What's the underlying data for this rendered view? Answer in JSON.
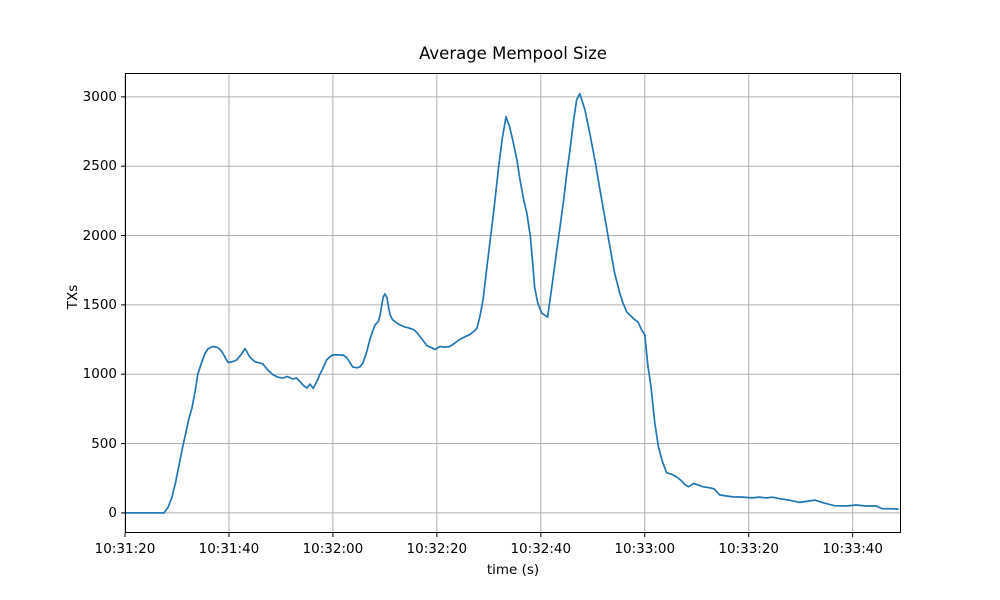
{
  "chart_data": {
    "type": "line",
    "title": "Average Mempool Size",
    "xlabel": "time (s)",
    "ylabel": "TXs",
    "grid": true,
    "legend": "none",
    "line_color": "#1f77b4",
    "grid_color": "#b0b0b0",
    "spine_color": "#000000",
    "x_unit": "seconds since 10:31:20",
    "x_tick_seconds": [
      0,
      20,
      40,
      60,
      80,
      100,
      120,
      140
    ],
    "x_tick_labels": [
      "10:31:20",
      "10:31:40",
      "10:32:00",
      "10:32:20",
      "10:32:40",
      "10:33:00",
      "10:33:20",
      "10:33:40"
    ],
    "y_ticks": [
      0,
      500,
      1000,
      1500,
      2000,
      2500,
      3000
    ],
    "xlim_seconds": [
      0,
      149.3
    ],
    "ylim": [
      -145,
      3172
    ],
    "series": [
      {
        "points": [
          [
            0,
            0
          ],
          [
            2,
            0
          ],
          [
            4,
            0
          ],
          [
            6,
            0
          ],
          [
            7.5,
            0
          ],
          [
            8.3,
            40
          ],
          [
            9,
            110
          ],
          [
            9.7,
            215
          ],
          [
            10.4,
            346
          ],
          [
            11,
            460
          ],
          [
            11.6,
            560
          ],
          [
            12.3,
            680
          ],
          [
            12.9,
            757
          ],
          [
            13.5,
            880
          ],
          [
            14,
            1000
          ],
          [
            14.8,
            1090
          ],
          [
            15.4,
            1150
          ],
          [
            16,
            1185
          ],
          [
            16.9,
            1200
          ],
          [
            17.9,
            1192
          ],
          [
            18.7,
            1160
          ],
          [
            19.3,
            1120
          ],
          [
            19.8,
            1085
          ],
          [
            20.6,
            1089
          ],
          [
            21.5,
            1103
          ],
          [
            22.3,
            1140
          ],
          [
            23.1,
            1185
          ],
          [
            24,
            1125
          ],
          [
            25,
            1090
          ],
          [
            26.5,
            1075
          ],
          [
            27.5,
            1030
          ],
          [
            28.5,
            995
          ],
          [
            29.5,
            978
          ],
          [
            30.4,
            973
          ],
          [
            31.2,
            983
          ],
          [
            32.3,
            966
          ],
          [
            33,
            973
          ],
          [
            33.7,
            945
          ],
          [
            34.3,
            920
          ],
          [
            35,
            900
          ],
          [
            35.6,
            928
          ],
          [
            36.2,
            898
          ],
          [
            37,
            955
          ],
          [
            37.5,
            1000
          ],
          [
            38,
            1035
          ],
          [
            38.8,
            1103
          ],
          [
            39.4,
            1125
          ],
          [
            40,
            1139
          ],
          [
            41,
            1140
          ],
          [
            42,
            1138
          ],
          [
            42.7,
            1118
          ],
          [
            43.8,
            1053
          ],
          [
            44.6,
            1046
          ],
          [
            45.2,
            1053
          ],
          [
            45.8,
            1082
          ],
          [
            46.5,
            1161
          ],
          [
            47.1,
            1248
          ],
          [
            47.6,
            1305
          ],
          [
            48.1,
            1355
          ],
          [
            48.7,
            1377
          ],
          [
            49.1,
            1428
          ],
          [
            49.4,
            1500
          ],
          [
            49.7,
            1558
          ],
          [
            50,
            1579
          ],
          [
            50.4,
            1550
          ],
          [
            50.7,
            1486
          ],
          [
            51,
            1428
          ],
          [
            51.5,
            1392
          ],
          [
            52.3,
            1370
          ],
          [
            52.9,
            1355
          ],
          [
            53.8,
            1341
          ],
          [
            54.6,
            1334
          ],
          [
            55.6,
            1320
          ],
          [
            56.2,
            1298
          ],
          [
            57.2,
            1250
          ],
          [
            58.1,
            1205
          ],
          [
            58.7,
            1197
          ],
          [
            59.6,
            1178
          ],
          [
            60.6,
            1200
          ],
          [
            61.5,
            1195
          ],
          [
            62.5,
            1200
          ],
          [
            63.5,
            1225
          ],
          [
            64.4,
            1250
          ],
          [
            65.4,
            1270
          ],
          [
            66.3,
            1285
          ],
          [
            67,
            1305
          ],
          [
            67.7,
            1330
          ],
          [
            68.3,
            1420
          ],
          [
            68.9,
            1540
          ],
          [
            69.5,
            1730
          ],
          [
            70.1,
            1920
          ],
          [
            70.8,
            2130
          ],
          [
            71.4,
            2330
          ],
          [
            72,
            2530
          ],
          [
            72.6,
            2700
          ],
          [
            73.3,
            2856
          ],
          [
            74,
            2784
          ],
          [
            74.6,
            2690
          ],
          [
            75.4,
            2546
          ],
          [
            76,
            2402
          ],
          [
            76.7,
            2257
          ],
          [
            77.3,
            2163
          ],
          [
            78,
            1990
          ],
          [
            78.5,
            1774
          ],
          [
            78.8,
            1630
          ],
          [
            79.4,
            1514
          ],
          [
            80.2,
            1440
          ],
          [
            80.8,
            1425
          ],
          [
            81.3,
            1412
          ],
          [
            82.3,
            1680
          ],
          [
            83,
            1875
          ],
          [
            83.7,
            2060
          ],
          [
            84.4,
            2260
          ],
          [
            85,
            2450
          ],
          [
            85.7,
            2640
          ],
          [
            86.3,
            2830
          ],
          [
            86.9,
            2980
          ],
          [
            87.5,
            3022
          ],
          [
            88.5,
            2905
          ],
          [
            89.4,
            2740
          ],
          [
            90.4,
            2545
          ],
          [
            91.3,
            2350
          ],
          [
            92.3,
            2135
          ],
          [
            93.3,
            1920
          ],
          [
            94.2,
            1730
          ],
          [
            95.2,
            1585
          ],
          [
            95.8,
            1515
          ],
          [
            96.5,
            1450
          ],
          [
            97.5,
            1413
          ],
          [
            98.1,
            1392
          ],
          [
            98.7,
            1377
          ],
          [
            99.4,
            1320
          ],
          [
            100,
            1285
          ],
          [
            100.6,
            1060
          ],
          [
            101.2,
            910
          ],
          [
            101.9,
            660
          ],
          [
            102.6,
            480
          ],
          [
            103.4,
            370
          ],
          [
            104.2,
            290
          ],
          [
            105.2,
            278
          ],
          [
            106.2,
            258
          ],
          [
            107.1,
            230
          ],
          [
            107.7,
            205
          ],
          [
            108.4,
            188
          ],
          [
            109.5,
            213
          ],
          [
            110.4,
            200
          ],
          [
            111.2,
            188
          ],
          [
            112.4,
            182
          ],
          [
            113.4,
            172
          ],
          [
            114.4,
            130
          ],
          [
            115.7,
            122
          ],
          [
            117,
            115
          ],
          [
            118.8,
            114
          ],
          [
            120.7,
            108
          ],
          [
            122,
            114
          ],
          [
            123.4,
            108
          ],
          [
            124.6,
            113
          ],
          [
            126,
            102
          ],
          [
            128,
            90
          ],
          [
            129.8,
            76
          ],
          [
            131.6,
            86
          ],
          [
            132.7,
            92
          ],
          [
            134.6,
            70
          ],
          [
            136.5,
            52
          ],
          [
            138.8,
            50
          ],
          [
            140.7,
            57
          ],
          [
            142.6,
            50
          ],
          [
            144.5,
            50
          ],
          [
            145.7,
            30
          ],
          [
            147,
            30
          ],
          [
            148.7,
            28
          ]
        ]
      }
    ]
  }
}
